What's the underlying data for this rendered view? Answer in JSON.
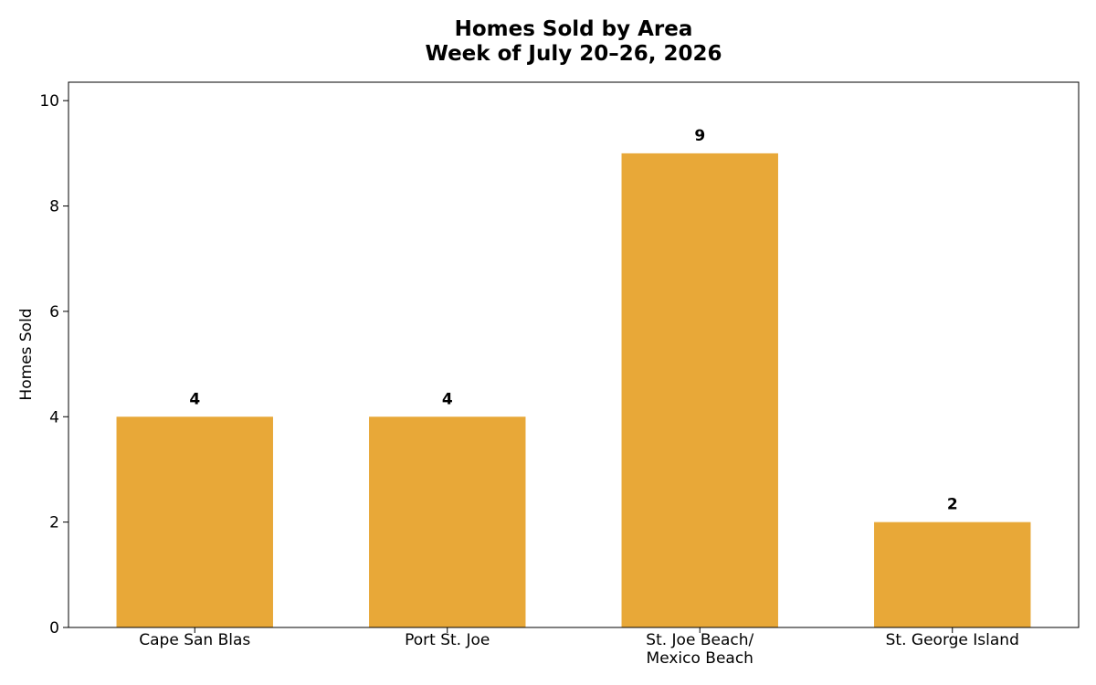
{
  "chart_data": {
    "type": "bar",
    "title_lines": [
      "Homes Sold by Area",
      "Week of July 20–26, 2026"
    ],
    "xlabel": "",
    "ylabel": "Homes Sold",
    "categories": [
      [
        "Cape San Blas"
      ],
      [
        "Port St. Joe"
      ],
      [
        "St. Joe Beach/",
        "Mexico Beach"
      ],
      [
        "St. George Island"
      ]
    ],
    "values": [
      4,
      4,
      9,
      2
    ],
    "value_labels": [
      "4",
      "4",
      "9",
      "2"
    ],
    "ylim": [
      0,
      10.35
    ],
    "yticks": [
      0,
      2,
      4,
      6,
      8,
      10
    ],
    "ytick_labels": [
      "0",
      "2",
      "4",
      "6",
      "8",
      "10"
    ],
    "bar_color": "#E8A838",
    "grid": false,
    "legend": "none"
  }
}
